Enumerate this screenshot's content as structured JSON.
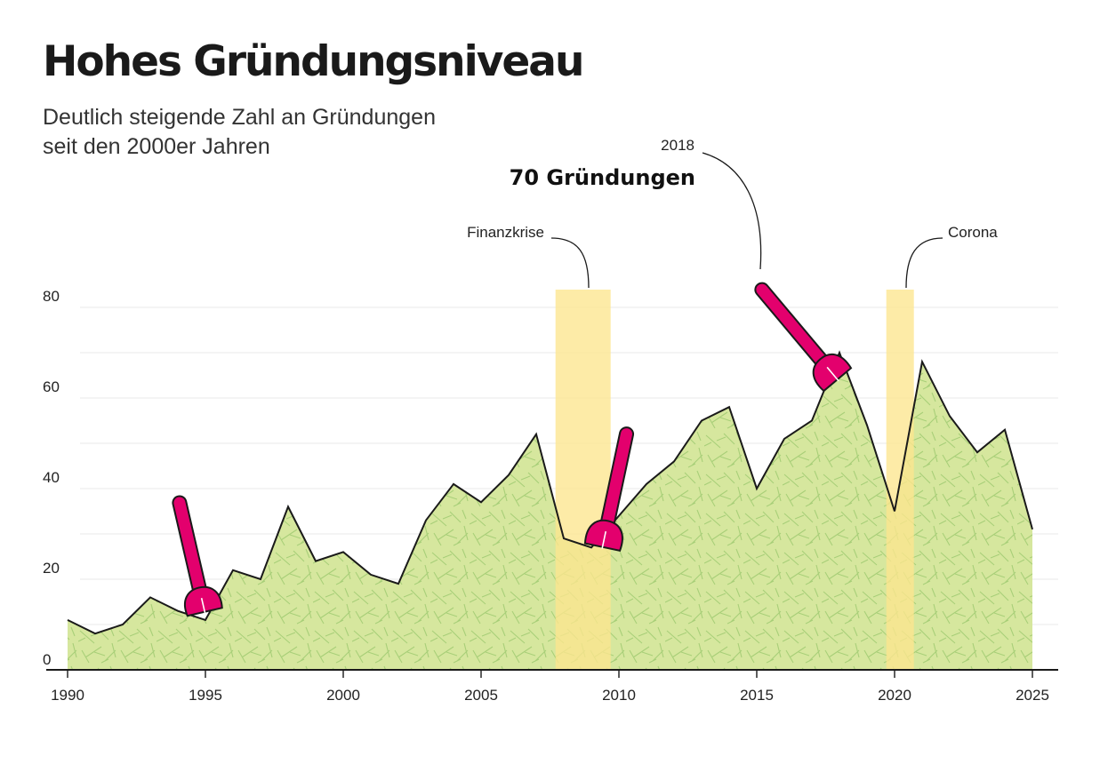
{
  "header": {
    "title": "Hohes Gründungsniveau",
    "subtitle_line1": "Deutlich steigende Zahl an Gründungen",
    "subtitle_line2": "seit den 2000er Jahren"
  },
  "colors": {
    "area_fill": "#d6e79e",
    "area_texture": "#a8cf78",
    "line": "#1a1a1a",
    "highlight_band": "#fde68e",
    "shovel": "#e3006d",
    "grid": "#eaeaea"
  },
  "icons": [
    "shovel-icon"
  ],
  "chart_data": {
    "type": "area",
    "title": "Hohes Gründungsniveau",
    "subtitle": "Deutlich steigende Zahl an Gründungen seit den 2000er Jahren",
    "xlabel": "",
    "ylabel": "",
    "grid": true,
    "xlim": [
      1989.5,
      2025
    ],
    "ylim": [
      0,
      80
    ],
    "x_ticks": [
      "1990",
      "1995",
      "2000",
      "2005",
      "2010",
      "2015",
      "2020",
      "2025"
    ],
    "y_ticks": [
      "0",
      "20",
      "40",
      "60",
      "80"
    ],
    "x": [
      1990,
      1991,
      1992,
      1993,
      1994,
      1995,
      1996,
      1997,
      1998,
      1999,
      2000,
      2001,
      2002,
      2003,
      2004,
      2005,
      2006,
      2007,
      2008,
      2009,
      2010,
      2011,
      2012,
      2013,
      2014,
      2015,
      2016,
      2017,
      2018,
      2019,
      2020,
      2021,
      2022,
      2023,
      2024,
      2025
    ],
    "values": [
      11,
      8,
      10,
      16,
      13,
      11,
      22,
      20,
      36,
      24,
      26,
      21,
      19,
      33,
      41,
      37,
      43,
      52,
      29,
      27,
      34,
      41,
      46,
      55,
      58,
      40,
      51,
      55,
      70,
      54,
      35,
      68,
      56,
      48,
      53,
      31
    ],
    "bands": [
      {
        "label": "Finanzkrise",
        "start": 2007.7,
        "end": 2009.7
      },
      {
        "label": "Corona",
        "start": 2019.7,
        "end": 2020.7
      }
    ],
    "annotations": [
      {
        "year_label": "2018",
        "text": "70 Gründungen",
        "x": 2018,
        "y": 70
      }
    ]
  }
}
